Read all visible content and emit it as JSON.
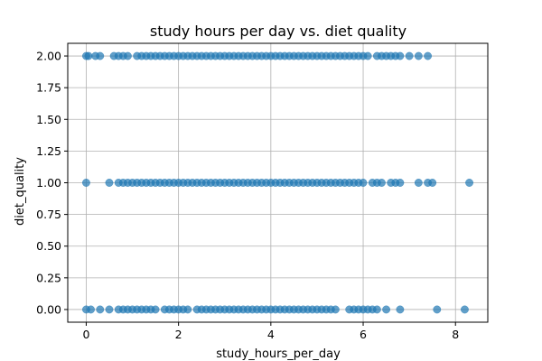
{
  "chart_data": {
    "type": "scatter",
    "title": "study hours per day vs. diet quality",
    "xlabel": "study_hours_per_day",
    "ylabel": "diet_quality",
    "xlim": [
      -0.4,
      8.7
    ],
    "ylim": [
      -0.1,
      2.1
    ],
    "xticks": [
      0,
      2,
      4,
      6,
      8
    ],
    "xtick_labels": [
      "0",
      "2",
      "4",
      "6",
      "8"
    ],
    "yticks": [
      0.0,
      0.25,
      0.5,
      0.75,
      1.0,
      1.25,
      1.5,
      1.75,
      2.0
    ],
    "ytick_labels": [
      "0.00",
      "0.25",
      "0.50",
      "0.75",
      "1.00",
      "1.25",
      "1.50",
      "1.75",
      "2.00"
    ],
    "grid": true,
    "marker_color": "#1f77b4",
    "series": [
      {
        "points": [
          [
            0.0,
            2
          ],
          [
            0.05,
            2
          ],
          [
            0.2,
            2
          ],
          [
            0.3,
            2
          ],
          [
            0.6,
            2
          ],
          [
            0.7,
            2
          ],
          [
            0.8,
            2
          ],
          [
            0.9,
            2
          ],
          [
            1.1,
            2
          ],
          [
            1.2,
            2
          ],
          [
            1.3,
            2
          ],
          [
            1.4,
            2
          ],
          [
            1.5,
            2
          ],
          [
            1.6,
            2
          ],
          [
            1.7,
            2
          ],
          [
            1.8,
            2
          ],
          [
            1.9,
            2
          ],
          [
            2.0,
            2
          ],
          [
            2.1,
            2
          ],
          [
            2.2,
            2
          ],
          [
            2.3,
            2
          ],
          [
            2.4,
            2
          ],
          [
            2.5,
            2
          ],
          [
            2.6,
            2
          ],
          [
            2.7,
            2
          ],
          [
            2.8,
            2
          ],
          [
            2.9,
            2
          ],
          [
            3.0,
            2
          ],
          [
            3.1,
            2
          ],
          [
            3.2,
            2
          ],
          [
            3.3,
            2
          ],
          [
            3.4,
            2
          ],
          [
            3.5,
            2
          ],
          [
            3.6,
            2
          ],
          [
            3.7,
            2
          ],
          [
            3.8,
            2
          ],
          [
            3.9,
            2
          ],
          [
            4.0,
            2
          ],
          [
            4.1,
            2
          ],
          [
            4.2,
            2
          ],
          [
            4.3,
            2
          ],
          [
            4.4,
            2
          ],
          [
            4.5,
            2
          ],
          [
            4.6,
            2
          ],
          [
            4.7,
            2
          ],
          [
            4.8,
            2
          ],
          [
            4.9,
            2
          ],
          [
            5.0,
            2
          ],
          [
            5.1,
            2
          ],
          [
            5.2,
            2
          ],
          [
            5.3,
            2
          ],
          [
            5.4,
            2
          ],
          [
            5.5,
            2
          ],
          [
            5.6,
            2
          ],
          [
            5.7,
            2
          ],
          [
            5.8,
            2
          ],
          [
            5.9,
            2
          ],
          [
            6.0,
            2
          ],
          [
            6.1,
            2
          ],
          [
            6.3,
            2
          ],
          [
            6.4,
            2
          ],
          [
            6.5,
            2
          ],
          [
            6.6,
            2
          ],
          [
            6.7,
            2
          ],
          [
            6.8,
            2
          ],
          [
            7.0,
            2
          ],
          [
            7.2,
            2
          ],
          [
            7.4,
            2
          ],
          [
            0.0,
            1
          ],
          [
            0.5,
            1
          ],
          [
            0.7,
            1
          ],
          [
            0.8,
            1
          ],
          [
            0.9,
            1
          ],
          [
            1.0,
            1
          ],
          [
            1.1,
            1
          ],
          [
            1.2,
            1
          ],
          [
            1.3,
            1
          ],
          [
            1.4,
            1
          ],
          [
            1.5,
            1
          ],
          [
            1.6,
            1
          ],
          [
            1.7,
            1
          ],
          [
            1.8,
            1
          ],
          [
            1.9,
            1
          ],
          [
            2.0,
            1
          ],
          [
            2.1,
            1
          ],
          [
            2.2,
            1
          ],
          [
            2.3,
            1
          ],
          [
            2.4,
            1
          ],
          [
            2.5,
            1
          ],
          [
            2.6,
            1
          ],
          [
            2.7,
            1
          ],
          [
            2.8,
            1
          ],
          [
            2.9,
            1
          ],
          [
            3.0,
            1
          ],
          [
            3.1,
            1
          ],
          [
            3.2,
            1
          ],
          [
            3.3,
            1
          ],
          [
            3.4,
            1
          ],
          [
            3.5,
            1
          ],
          [
            3.6,
            1
          ],
          [
            3.7,
            1
          ],
          [
            3.8,
            1
          ],
          [
            3.9,
            1
          ],
          [
            4.0,
            1
          ],
          [
            4.1,
            1
          ],
          [
            4.2,
            1
          ],
          [
            4.3,
            1
          ],
          [
            4.4,
            1
          ],
          [
            4.5,
            1
          ],
          [
            4.6,
            1
          ],
          [
            4.7,
            1
          ],
          [
            4.8,
            1
          ],
          [
            4.9,
            1
          ],
          [
            5.0,
            1
          ],
          [
            5.1,
            1
          ],
          [
            5.2,
            1
          ],
          [
            5.3,
            1
          ],
          [
            5.4,
            1
          ],
          [
            5.5,
            1
          ],
          [
            5.6,
            1
          ],
          [
            5.7,
            1
          ],
          [
            5.8,
            1
          ],
          [
            5.9,
            1
          ],
          [
            6.0,
            1
          ],
          [
            6.2,
            1
          ],
          [
            6.3,
            1
          ],
          [
            6.4,
            1
          ],
          [
            6.6,
            1
          ],
          [
            6.7,
            1
          ],
          [
            6.8,
            1
          ],
          [
            7.2,
            1
          ],
          [
            7.4,
            1
          ],
          [
            7.5,
            1
          ],
          [
            8.3,
            1
          ],
          [
            0.0,
            0
          ],
          [
            0.1,
            0
          ],
          [
            0.3,
            0
          ],
          [
            0.5,
            0
          ],
          [
            0.7,
            0
          ],
          [
            0.8,
            0
          ],
          [
            0.9,
            0
          ],
          [
            1.0,
            0
          ],
          [
            1.1,
            0
          ],
          [
            1.2,
            0
          ],
          [
            1.3,
            0
          ],
          [
            1.4,
            0
          ],
          [
            1.5,
            0
          ],
          [
            1.7,
            0
          ],
          [
            1.8,
            0
          ],
          [
            1.9,
            0
          ],
          [
            2.0,
            0
          ],
          [
            2.1,
            0
          ],
          [
            2.2,
            0
          ],
          [
            2.4,
            0
          ],
          [
            2.5,
            0
          ],
          [
            2.6,
            0
          ],
          [
            2.7,
            0
          ],
          [
            2.8,
            0
          ],
          [
            2.9,
            0
          ],
          [
            3.0,
            0
          ],
          [
            3.1,
            0
          ],
          [
            3.2,
            0
          ],
          [
            3.3,
            0
          ],
          [
            3.4,
            0
          ],
          [
            3.5,
            0
          ],
          [
            3.6,
            0
          ],
          [
            3.7,
            0
          ],
          [
            3.8,
            0
          ],
          [
            3.9,
            0
          ],
          [
            4.0,
            0
          ],
          [
            4.1,
            0
          ],
          [
            4.2,
            0
          ],
          [
            4.3,
            0
          ],
          [
            4.4,
            0
          ],
          [
            4.5,
            0
          ],
          [
            4.6,
            0
          ],
          [
            4.7,
            0
          ],
          [
            4.8,
            0
          ],
          [
            4.9,
            0
          ],
          [
            5.0,
            0
          ],
          [
            5.1,
            0
          ],
          [
            5.2,
            0
          ],
          [
            5.3,
            0
          ],
          [
            5.4,
            0
          ],
          [
            5.7,
            0
          ],
          [
            5.8,
            0
          ],
          [
            5.9,
            0
          ],
          [
            6.0,
            0
          ],
          [
            6.1,
            0
          ],
          [
            6.2,
            0
          ],
          [
            6.3,
            0
          ],
          [
            6.5,
            0
          ],
          [
            6.8,
            0
          ],
          [
            7.6,
            0
          ],
          [
            8.2,
            0
          ]
        ]
      }
    ]
  }
}
